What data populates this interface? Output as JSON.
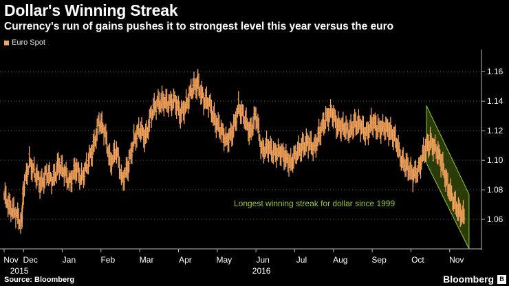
{
  "chart_data": {
    "type": "line",
    "title": "Dollar's Winning Streak",
    "subtitle": "Currency's run of gains pushes it to strongest level this year versus the euro",
    "legend": "Euro Spot",
    "series_color": "#f4a45c",
    "channel_color": "#9ac836",
    "source": "Source: Bloomberg",
    "brand": "Bloomberg",
    "annotation": "Longest winning streak for dollar since 1999",
    "ylim": [
      1.04,
      1.175
    ],
    "yticks": [
      1.06,
      1.08,
      1.1,
      1.12,
      1.14,
      1.16
    ],
    "ytick_labels": [
      "1.06",
      "1.08",
      "1.10",
      "1.12",
      "1.14",
      "1.16"
    ],
    "xticks": [
      {
        "label": "Nov",
        "x": 0
      },
      {
        "label": "Dec",
        "x": 1
      },
      {
        "label": "Jan",
        "x": 3
      },
      {
        "label": "Feb",
        "x": 5
      },
      {
        "label": "Mar",
        "x": 7
      },
      {
        "label": "Apr",
        "x": 9
      },
      {
        "label": "May",
        "x": 11
      },
      {
        "label": "Jun",
        "x": 13
      },
      {
        "label": "Jul",
        "x": 15
      },
      {
        "label": "Aug",
        "x": 17
      },
      {
        "label": "Sep",
        "x": 19
      },
      {
        "label": "Oct",
        "x": 21
      },
      {
        "label": "Nov",
        "x": 23
      }
    ],
    "year_labels": [
      {
        "label": "2015",
        "x": 0.5
      },
      {
        "label": "2016",
        "x": 13
      }
    ],
    "xlim": [
      0,
      24.5
    ],
    "x": [
      0.0,
      0.3,
      0.6,
      0.9,
      1.0,
      1.3,
      1.6,
      1.9,
      2.2,
      2.5,
      2.8,
      3.1,
      3.4,
      3.7,
      4.0,
      4.3,
      4.6,
      4.9,
      5.2,
      5.5,
      5.8,
      6.1,
      6.4,
      6.7,
      7.0,
      7.3,
      7.6,
      7.9,
      8.2,
      8.5,
      8.8,
      9.1,
      9.4,
      9.7,
      10.0,
      10.3,
      10.6,
      10.9,
      11.2,
      11.5,
      11.8,
      12.1,
      12.4,
      12.7,
      13.0,
      13.3,
      13.6,
      13.9,
      14.2,
      14.5,
      14.8,
      15.1,
      15.4,
      15.7,
      16.0,
      16.3,
      16.6,
      16.9,
      17.2,
      17.5,
      17.8,
      18.1,
      18.4,
      18.7,
      19.0,
      19.3,
      19.6,
      19.9,
      20.2,
      20.5,
      20.8,
      21.1,
      21.4,
      21.7,
      22.0,
      22.3,
      22.6,
      22.9,
      23.2,
      23.5,
      23.8
    ],
    "values": [
      1.076,
      1.069,
      1.063,
      1.058,
      1.08,
      1.099,
      1.091,
      1.083,
      1.092,
      1.085,
      1.098,
      1.091,
      1.086,
      1.094,
      1.088,
      1.097,
      1.108,
      1.127,
      1.118,
      1.099,
      1.106,
      1.087,
      1.095,
      1.114,
      1.121,
      1.115,
      1.132,
      1.138,
      1.141,
      1.137,
      1.142,
      1.13,
      1.138,
      1.148,
      1.152,
      1.141,
      1.138,
      1.127,
      1.119,
      1.114,
      1.118,
      1.137,
      1.128,
      1.119,
      1.131,
      1.106,
      1.11,
      1.104,
      1.107,
      1.101,
      1.099,
      1.104,
      1.11,
      1.112,
      1.108,
      1.119,
      1.127,
      1.134,
      1.122,
      1.124,
      1.118,
      1.126,
      1.123,
      1.118,
      1.126,
      1.121,
      1.123,
      1.119,
      1.116,
      1.099,
      1.097,
      1.089,
      1.094,
      1.107,
      1.112,
      1.108,
      1.097,
      1.084,
      1.071,
      1.066,
      1.06
    ]
  }
}
